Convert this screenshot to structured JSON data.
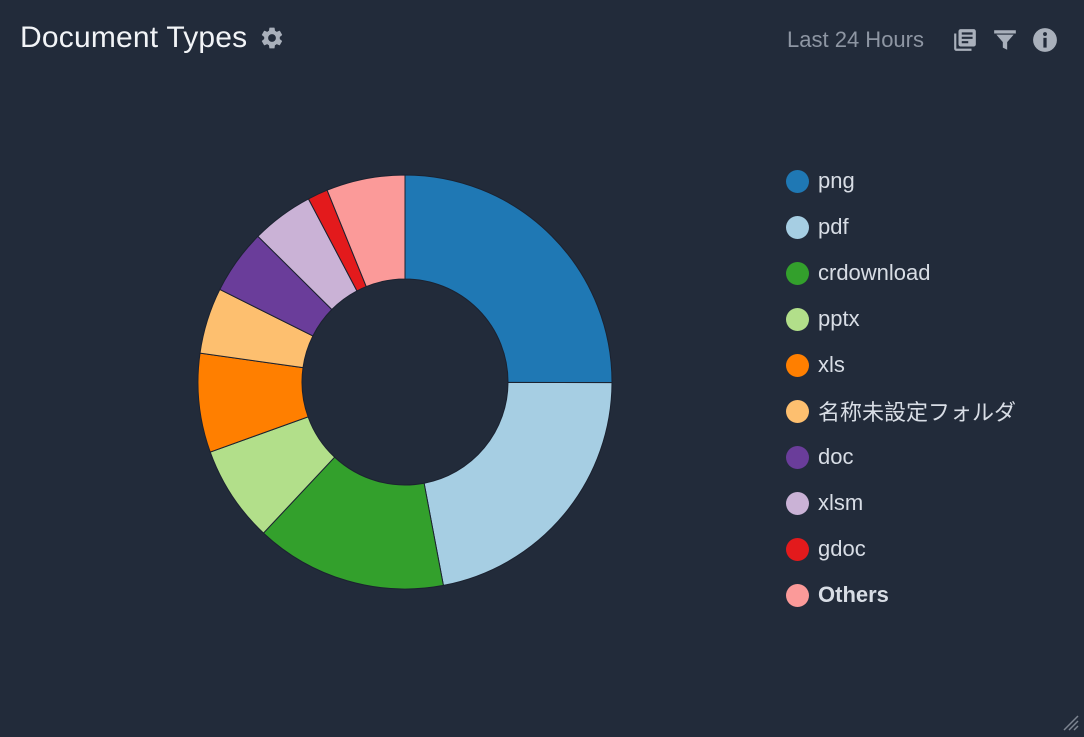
{
  "header": {
    "title": "Document Types",
    "time_range": "Last 24 Hours"
  },
  "icons": {
    "settings": "gear-icon",
    "copy": "copy-icon",
    "filter": "filter-icon",
    "info": "info-icon",
    "resize": "resize-grip-icon"
  },
  "colors": {
    "background": "#222b3a",
    "slice_border": "#1b2230"
  },
  "chart_data": {
    "type": "pie",
    "donut": true,
    "legend_position": "right",
    "slices": [
      {
        "label": "png",
        "value": 25.3,
        "color": "#1f78b4"
      },
      {
        "label": "pdf",
        "value": 22.2,
        "color": "#a6cee3"
      },
      {
        "label": "crdownload",
        "value": 15.1,
        "color": "#33a02c"
      },
      {
        "label": "pptx",
        "value": 7.6,
        "color": "#b2df8a"
      },
      {
        "label": "xls",
        "value": 7.8,
        "color": "#ff7f00"
      },
      {
        "label": "名称未設定フォルダ",
        "value": 5.2,
        "color": "#fdbf6f"
      },
      {
        "label": "doc",
        "value": 5.1,
        "color": "#6a3d9a"
      },
      {
        "label": "xlsm",
        "value": 4.9,
        "color": "#cab2d6"
      },
      {
        "label": "gdoc",
        "value": 1.6,
        "color": "#e31a1c"
      },
      {
        "label": "Others",
        "value": 6.2,
        "color": "#fb9a99",
        "bold": true
      }
    ]
  }
}
